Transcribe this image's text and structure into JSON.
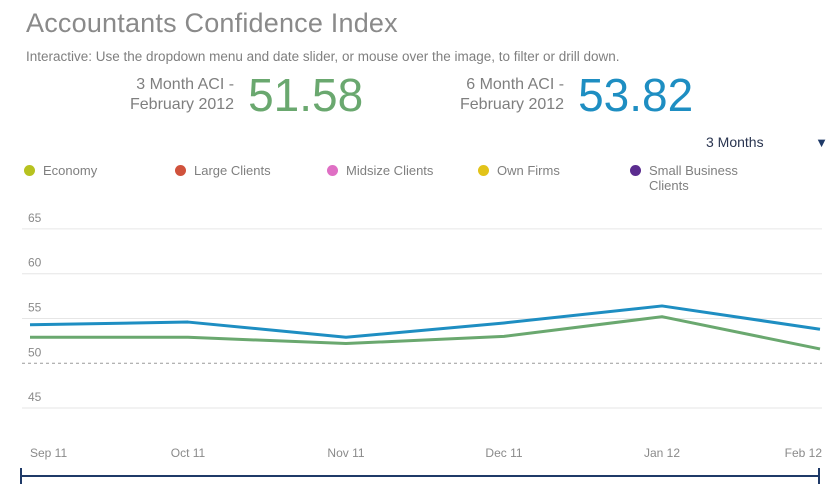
{
  "title": "Accountants Confidence Index",
  "instructions": "Interactive: Use the dropdown menu and date slider, or mouse over the image, to filter or drill down.",
  "kpis": {
    "three_month": {
      "label_line1": "3 Month ACI -",
      "label_line2": "February 2012",
      "value": "51.58",
      "color": "#6aa86f"
    },
    "six_month": {
      "label_line1": "6 Month ACI -",
      "label_line2": "February 2012",
      "value": "53.82",
      "color": "#1e8ec2"
    }
  },
  "dropdown": {
    "selected": "3 Months",
    "arrow": "▼"
  },
  "legend": [
    {
      "label": "Economy",
      "color": "#b7c21f"
    },
    {
      "label": "Large Clients",
      "color": "#d0523c"
    },
    {
      "label": "Midsize Clients",
      "color": "#df6fc4"
    },
    {
      "label": "Own Firms",
      "color": "#e2c319"
    },
    {
      "label": "Small Business Clients",
      "color": "#5b2c8f"
    }
  ],
  "chart_data": {
    "type": "line",
    "categories": [
      "Sep 11",
      "Oct 11",
      "Nov 11",
      "Dec 11",
      "Jan 12",
      "Feb 12"
    ],
    "series": [
      {
        "name": "6 Month ACI",
        "color": "#1e8ec2",
        "values": [
          54.3,
          54.6,
          52.9,
          54.5,
          56.4,
          53.8
        ]
      },
      {
        "name": "3 Month ACI",
        "color": "#6aa86f",
        "values": [
          52.9,
          52.9,
          52.2,
          53.0,
          55.2,
          51.6
        ]
      }
    ],
    "yticks": [
      65,
      60,
      55,
      50,
      45
    ],
    "ylim": [
      44,
      67
    ],
    "reference_line": 50,
    "grid": true
  }
}
